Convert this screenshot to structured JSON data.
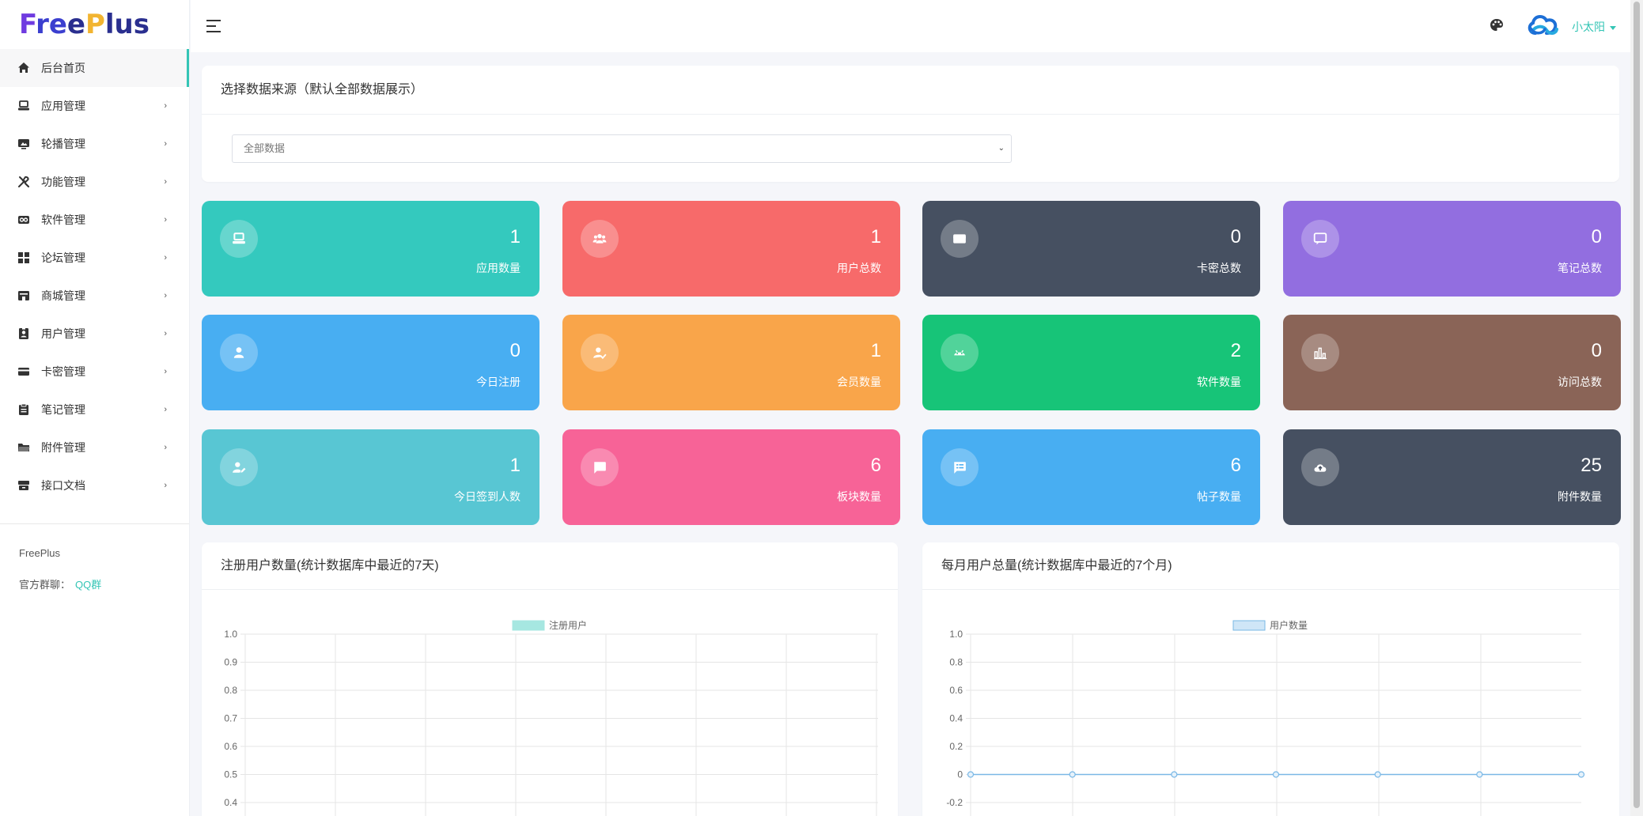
{
  "app": {
    "logo": "FreePlus"
  },
  "sidebar": {
    "items": [
      {
        "label": "后台首页",
        "icon": "home-icon",
        "active": true
      },
      {
        "label": "应用管理",
        "icon": "laptop-icon"
      },
      {
        "label": "轮播管理",
        "icon": "slideshow-icon"
      },
      {
        "label": "功能管理",
        "icon": "tools-icon"
      },
      {
        "label": "软件管理",
        "icon": "infinity-icon"
      },
      {
        "label": "论坛管理",
        "icon": "grid-icon"
      },
      {
        "label": "商城管理",
        "icon": "store-icon"
      },
      {
        "label": "用户管理",
        "icon": "user-badge-icon"
      },
      {
        "label": "卡密管理",
        "icon": "card-icon"
      },
      {
        "label": "笔记管理",
        "icon": "clipboard-icon"
      },
      {
        "label": "附件管理",
        "icon": "folder-icon"
      },
      {
        "label": "接口文档",
        "icon": "archive-icon"
      }
    ],
    "footer": {
      "brand": "FreePlus",
      "group_label": "官方群聊：",
      "group_link": "QQ群"
    }
  },
  "topbar": {
    "username": "小太阳"
  },
  "source": {
    "title": "选择数据来源（默认全部数据展示）",
    "selected": "全部数据"
  },
  "stats": [
    {
      "value": "1",
      "label": "应用数量",
      "color": "#34c9be",
      "icon": "laptop-icon"
    },
    {
      "value": "1",
      "label": "用户总数",
      "color": "#f76a6a",
      "icon": "users-icon"
    },
    {
      "value": "0",
      "label": "卡密总数",
      "color": "#465061",
      "icon": "card-icon"
    },
    {
      "value": "0",
      "label": "笔记总数",
      "color": "#926ee0",
      "icon": "comment-icon"
    },
    {
      "value": "0",
      "label": "今日注册",
      "color": "#48aef2",
      "icon": "user-icon"
    },
    {
      "value": "1",
      "label": "会员数量",
      "color": "#f9a54a",
      "icon": "user-check-icon"
    },
    {
      "value": "2",
      "label": "软件数量",
      "color": "#17c478",
      "icon": "android-icon"
    },
    {
      "value": "0",
      "label": "访问总数",
      "color": "#8a6457",
      "icon": "bar-chart-icon"
    },
    {
      "value": "1",
      "label": "今日签到人数",
      "color": "#58c6d3",
      "icon": "user-edit-icon"
    },
    {
      "value": "6",
      "label": "板块数量",
      "color": "#f76397",
      "icon": "message-icon"
    },
    {
      "value": "6",
      "label": "帖子数量",
      "color": "#48aef2",
      "icon": "post-icon"
    },
    {
      "value": "25",
      "label": "附件数量",
      "color": "#465061",
      "icon": "cloud-upload-icon"
    }
  ],
  "charts": {
    "left": {
      "title": "注册用户数量(统计数据库中最近的7天)"
    },
    "right": {
      "title": "每月用户总量(统计数据库中最近的7个月)"
    }
  },
  "chart_data": [
    {
      "type": "bar",
      "title": "注册用户数量(统计数据库中最近的7天)",
      "series": [
        {
          "name": "注册用户",
          "values": []
        }
      ],
      "legend_color": "#a6e7e1",
      "legend": "top",
      "ylim": [
        0,
        1.0
      ],
      "yticks": [
        "1.0",
        "0.9",
        "0.8",
        "0.7",
        "0.6",
        "0.5",
        "0.4"
      ],
      "grid": true
    },
    {
      "type": "line",
      "title": "每月用户总量(统计数据库中最近的7个月)",
      "series": [
        {
          "name": "用户数量",
          "values": [
            0,
            0,
            0,
            0,
            0,
            0,
            0
          ]
        }
      ],
      "legend_color": "#cfe6f7",
      "line_color": "#7ab8e6",
      "legend": "top",
      "ylim": [
        -0.2,
        1.0
      ],
      "yticks": [
        "1.0",
        "0.8",
        "0.6",
        "0.4",
        "0.2",
        "0",
        "-0.2"
      ],
      "grid": true
    }
  ]
}
